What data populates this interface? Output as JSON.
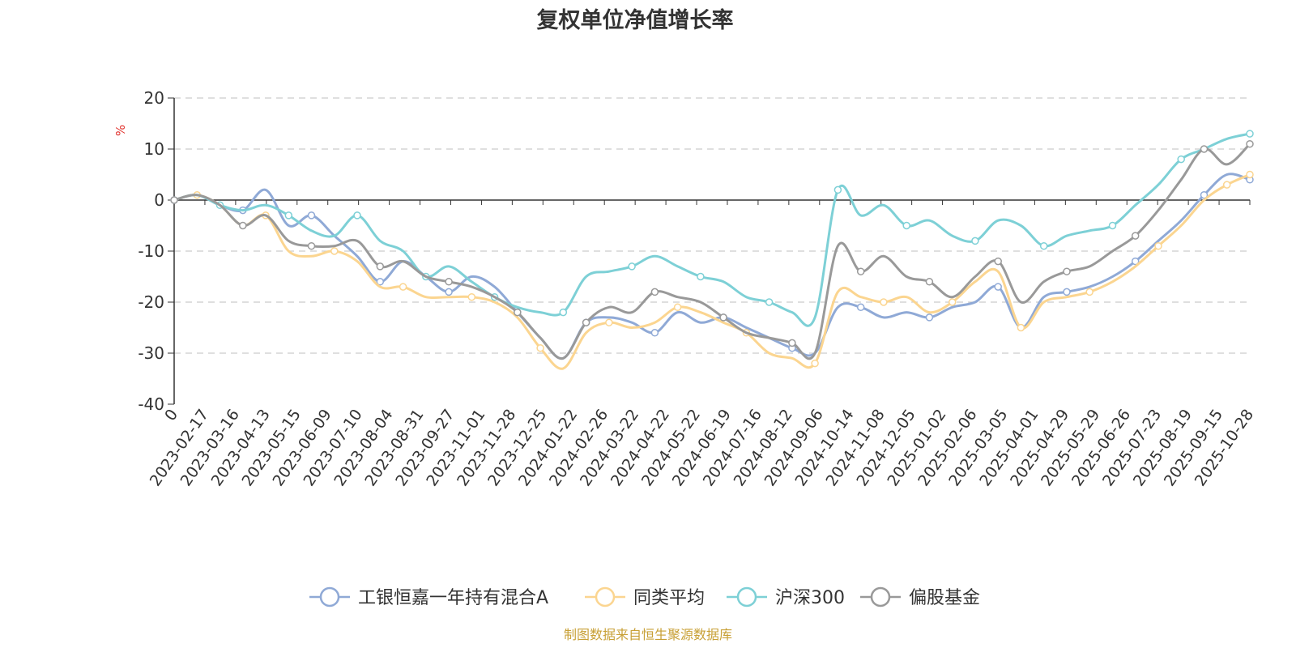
{
  "chart_data": {
    "type": "line",
    "title": "复权单位净值增长率",
    "ylabel": "%",
    "ylim": [
      -40,
      20
    ],
    "yticks": [
      20,
      10,
      0,
      -10,
      -20,
      -30,
      -40
    ],
    "grid": true,
    "legend_position": "bottom",
    "x_tick_labels": [
      "0",
      "2023-02-17",
      "2023-03-16",
      "2023-04-13",
      "2023-05-15",
      "2023-06-09",
      "2023-07-10",
      "2023-08-04",
      "2023-08-31",
      "2023-09-27",
      "2023-11-01",
      "2023-11-28",
      "2023-12-25",
      "2024-01-22",
      "2024-02-26",
      "2024-03-22",
      "2024-04-22",
      "2024-05-22",
      "2024-06-19",
      "2024-07-16",
      "2024-08-12",
      "2024-09-06",
      "2024-10-14",
      "2024-11-08",
      "2024-12-05",
      "2025-01-02",
      "2025-02-06",
      "2025-03-05",
      "2025-04-01",
      "2025-04-29",
      "2025-05-29",
      "2025-06-26",
      "2025-07-23",
      "2025-08-19",
      "2025-09-15",
      "2025-10-28"
    ],
    "series": [
      {
        "name": "工银恒嘉一年持有混合A",
        "color": "#8fa9d6",
        "values": [
          0,
          1,
          -1,
          -2,
          2,
          -5,
          -3,
          -7,
          -11,
          -16,
          -12,
          -15,
          -18,
          -15,
          -17,
          -22,
          -27,
          -31,
          -24,
          -23,
          -24,
          -26,
          -22,
          -24,
          -23,
          -25,
          -27,
          -29,
          -30,
          -21,
          -21,
          -23,
          -22,
          -23,
          -21,
          -20,
          -17,
          -25,
          -19,
          -18,
          -17,
          -15,
          -12,
          -8,
          -4,
          1,
          5,
          4
        ]
      },
      {
        "name": "同类平均",
        "color": "#fbd590",
        "values": [
          0,
          1,
          -1,
          -5,
          -3,
          -10,
          -11,
          -10,
          -12,
          -17,
          -17,
          -19,
          -19,
          -19,
          -20,
          -23,
          -29,
          -33,
          -26,
          -24,
          -25,
          -24,
          -21,
          -22,
          -24,
          -26,
          -30,
          -31,
          -32,
          -18,
          -19,
          -20,
          -19,
          -22,
          -20,
          -16,
          -14,
          -25,
          -20,
          -19,
          -18,
          -16,
          -13,
          -9,
          -5,
          0,
          3,
          5
        ]
      },
      {
        "name": "沪深300",
        "color": "#7dd0d6",
        "values": [
          0,
          1,
          -1,
          -2,
          -1,
          -3,
          -6,
          -7,
          -3,
          -8,
          -10,
          -15,
          -13,
          -16,
          -19,
          -21,
          -22,
          -22,
          -15,
          -14,
          -13,
          -11,
          -13,
          -15,
          -16,
          -19,
          -20,
          -22,
          -23,
          2,
          -3,
          -1,
          -5,
          -4,
          -7,
          -8,
          -4,
          -5,
          -9,
          -7,
          -6,
          -5,
          -1,
          3,
          8,
          10,
          12,
          13
        ]
      },
      {
        "name": "偏股基金",
        "color": "#999999",
        "values": [
          0,
          1,
          -1,
          -5,
          -3,
          -8,
          -9,
          -9,
          -8,
          -13,
          -12,
          -15,
          -16,
          -17,
          -19,
          -22,
          -27,
          -31,
          -24,
          -21,
          -22,
          -18,
          -19,
          -20,
          -23,
          -26,
          -27,
          -28,
          -30,
          -9,
          -14,
          -11,
          -15,
          -16,
          -19,
          -15,
          -12,
          -20,
          -16,
          -14,
          -13,
          -10,
          -7,
          -2,
          4,
          10,
          7,
          11
        ]
      }
    ]
  },
  "footer": {
    "source_text": "制图数据来自恒生聚源数据库",
    "source_color": "#c8a036"
  },
  "colors": {
    "axis": "#333333",
    "grid": "#cccccc",
    "unit": "#e0312c"
  }
}
